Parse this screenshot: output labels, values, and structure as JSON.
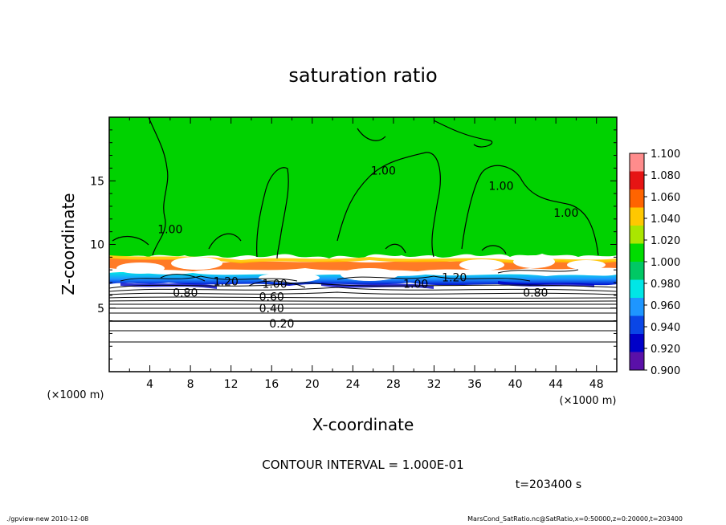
{
  "chart_data": {
    "type": "heatmap",
    "title": "saturation ratio",
    "xlabel": "X-coordinate",
    "ylabel": "Z-coordinate",
    "x_unit": "(×1000 m)",
    "y_unit": "(×1000 m)",
    "xlim": [
      0,
      50
    ],
    "ylim": [
      0,
      20
    ],
    "x_ticks": [
      4,
      8,
      12,
      16,
      20,
      24,
      28,
      32,
      36,
      40,
      44,
      48
    ],
    "y_ticks": [
      5,
      10,
      15
    ],
    "colorbar": {
      "levels": [
        0.9,
        0.92,
        0.94,
        0.96,
        0.98,
        1.0,
        1.02,
        1.04,
        1.06,
        1.08,
        1.1
      ],
      "labels": [
        "0.900",
        "0.920",
        "0.940",
        "0.960",
        "0.980",
        "1.000",
        "1.020",
        "1.040",
        "1.060",
        "1.080",
        "1.100"
      ],
      "colors": [
        "#5a10a8",
        "#0000c8",
        "#0a46e6",
        "#1e96ff",
        "#00e6e6",
        "#00c864",
        "#00dc00",
        "#aae600",
        "#ffc800",
        "#ff6400",
        "#e61414",
        "#ff8c8c"
      ],
      "background_color": "#00d200"
    },
    "contour_labels": [
      {
        "text": "1.00",
        "x": 27.0,
        "z": 15.8
      },
      {
        "text": "1.00",
        "x": 38.6,
        "z": 14.6
      },
      {
        "text": "1.00",
        "x": 6.0,
        "z": 11.2
      },
      {
        "text": "1.00",
        "x": 45.0,
        "z": 12.5
      },
      {
        "text": "1.00",
        "x": 16.3,
        "z": 6.9
      },
      {
        "text": "1.00",
        "x": 30.2,
        "z": 6.9
      },
      {
        "text": "0.20",
        "x": 17.0,
        "z": 3.8
      },
      {
        "text": "0.40",
        "x": 16.0,
        "z": 5.0
      },
      {
        "text": "0.60",
        "x": 16.0,
        "z": 5.9
      },
      {
        "text": "0.80",
        "x": 7.5,
        "z": 6.2
      },
      {
        "text": "0.80",
        "x": 42.0,
        "z": 6.2
      },
      {
        "text": "1.20",
        "x": 11.5,
        "z": 7.1
      },
      {
        "text": "1.20",
        "x": 34.0,
        "z": 7.4
      }
    ],
    "contour_interval_text": "CONTOUR INTERVAL = 1.000E-01",
    "time_text": "t=203400  s"
  },
  "footer": {
    "left": "./gpview-new   2010-12-08",
    "right": "MarsCond_SatRatio.nc@SatRatio,x=0:50000,z=0:20000,t=203400"
  }
}
